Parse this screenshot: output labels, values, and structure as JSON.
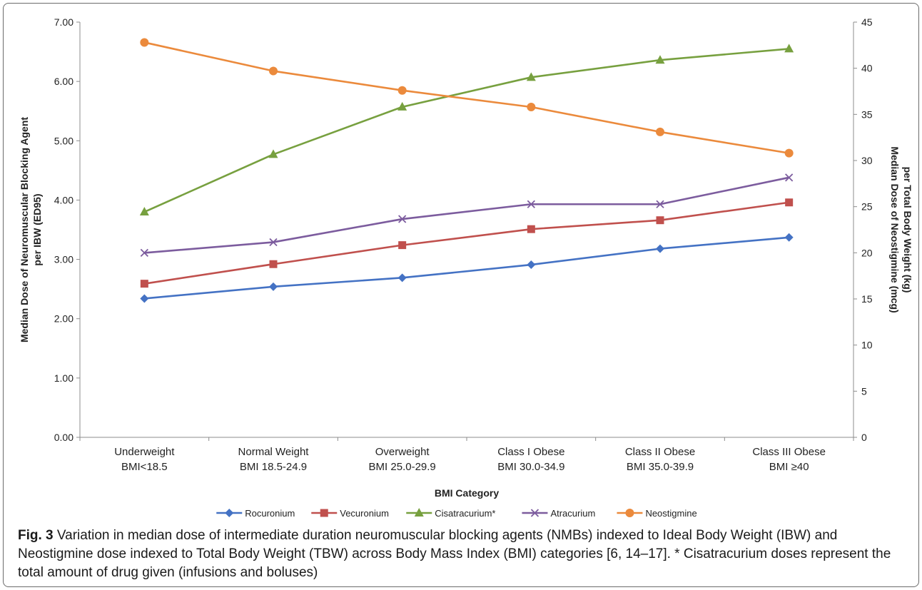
{
  "chart_data": {
    "type": "line",
    "categories": [
      [
        "Underweight",
        "BMI<18.5"
      ],
      [
        "Normal Weight",
        "BMI 18.5-24.9"
      ],
      [
        "Overweight",
        "BMI 25.0-29.9"
      ],
      [
        "Class I Obese",
        "BMI 30.0-34.9"
      ],
      [
        "Class II Obese",
        "BMI 35.0-39.9"
      ],
      [
        "Class III Obese",
        "BMI ≥40"
      ]
    ],
    "xlabel": "BMI Category",
    "ylabel_left_lines": [
      "Median Dose of Neuromuscular Blocking Agent",
      "per IBW (ED95)"
    ],
    "ylabel_right_lines": [
      "Median Dose of Neostigmine (mcg)",
      "per Total Body Weight (kg)"
    ],
    "y_left": {
      "min": 0,
      "max": 7,
      "ticks": [
        "0.00",
        "1.00",
        "2.00",
        "3.00",
        "4.00",
        "5.00",
        "6.00",
        "7.00"
      ]
    },
    "y_right": {
      "min": 0,
      "max": 45,
      "ticks": [
        "0",
        "5",
        "10",
        "15",
        "20",
        "25",
        "30",
        "35",
        "40",
        "45"
      ]
    },
    "grid": false,
    "legend_position": "bottom",
    "series": [
      {
        "name": "Rocuronium",
        "axis": "left",
        "marker": "diamond",
        "color": "#4472C4",
        "values": [
          2.34,
          2.54,
          2.69,
          2.91,
          3.18,
          3.37
        ]
      },
      {
        "name": "Vecuronium",
        "axis": "left",
        "marker": "square",
        "color": "#C0504D",
        "values": [
          2.59,
          2.92,
          3.24,
          3.51,
          3.66,
          3.96
        ]
      },
      {
        "name": "Cisatracurium*",
        "axis": "left",
        "marker": "triangle",
        "color": "#77A03F",
        "values": [
          3.8,
          4.77,
          5.57,
          6.07,
          6.36,
          6.55
        ]
      },
      {
        "name": "Atracurium",
        "axis": "left",
        "marker": "x",
        "color": "#7C5C9E",
        "values": [
          3.11,
          3.29,
          3.68,
          3.93,
          3.93,
          4.38
        ]
      },
      {
        "name": "Neostigmine",
        "axis": "right",
        "marker": "circle",
        "color": "#EB8A3C",
        "values": [
          42.8,
          39.7,
          37.6,
          35.8,
          33.1,
          30.8
        ]
      }
    ]
  },
  "caption": {
    "label": "Fig. 3",
    "text": " Variation in median dose of intermediate duration neuromuscular blocking agents (NMBs) indexed to Ideal Body Weight (IBW) and Neostigmine dose indexed to Total Body Weight (TBW) across Body Mass Index (BMI) categories [6, 14–17]. * Cisatracurium doses represent the total amount of drug given (infusions and boluses)"
  }
}
